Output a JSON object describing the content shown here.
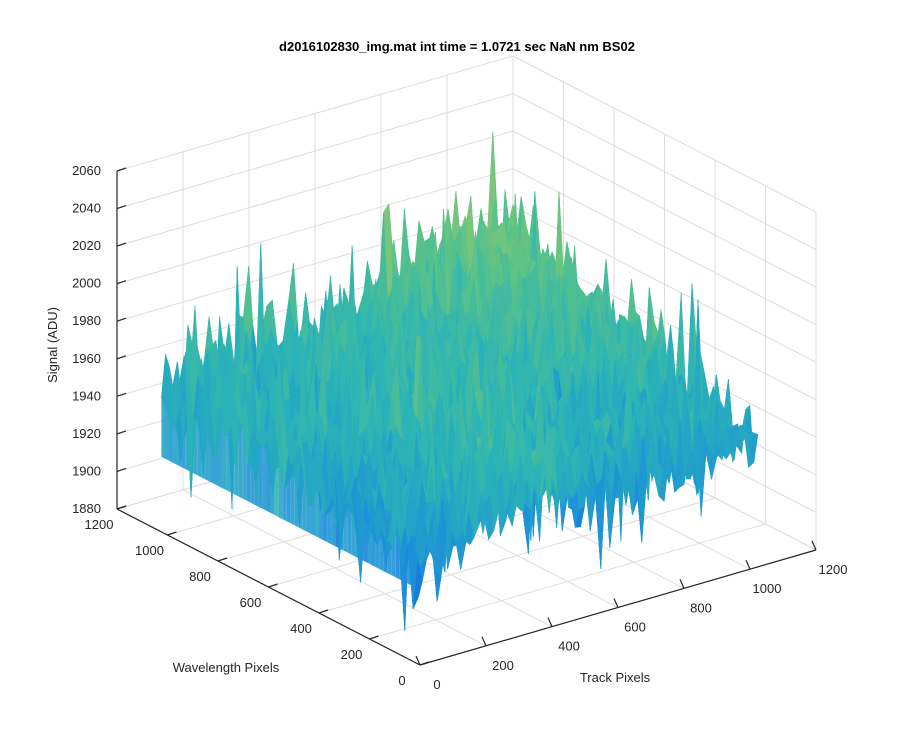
{
  "chart_data": {
    "type": "surface",
    "title": "d2016102830_img.mat int time = 1.0721 sec  NaN nm BS02",
    "xlabel": "Track Pixels",
    "ylabel": "Wavelength Pixels",
    "zlabel": "Signal (ADU)",
    "xlim": [
      0,
      1200
    ],
    "ylim": [
      0,
      1200
    ],
    "zlim": [
      1880,
      2060
    ],
    "x_ticks": [
      "0",
      "200",
      "400",
      "600",
      "800",
      "1000",
      "1200"
    ],
    "y_ticks": [
      "0",
      "200",
      "400",
      "600",
      "800",
      "1000",
      "1200"
    ],
    "z_ticks": [
      "1880",
      "1900",
      "1920",
      "1940",
      "1960",
      "1980",
      "2000",
      "2020",
      "2040",
      "2060"
    ],
    "data_extent": {
      "x": [
        0,
        1024
      ],
      "y": [
        0,
        1024
      ]
    },
    "signal_range": [
      1885,
      2055
    ],
    "signal_mean": 1960,
    "grid": true,
    "colormap": [
      "#0d5fe0",
      "#1c8ddb",
      "#2ab3b8",
      "#5cc386",
      "#a9c66a",
      "#e7bf45"
    ]
  }
}
